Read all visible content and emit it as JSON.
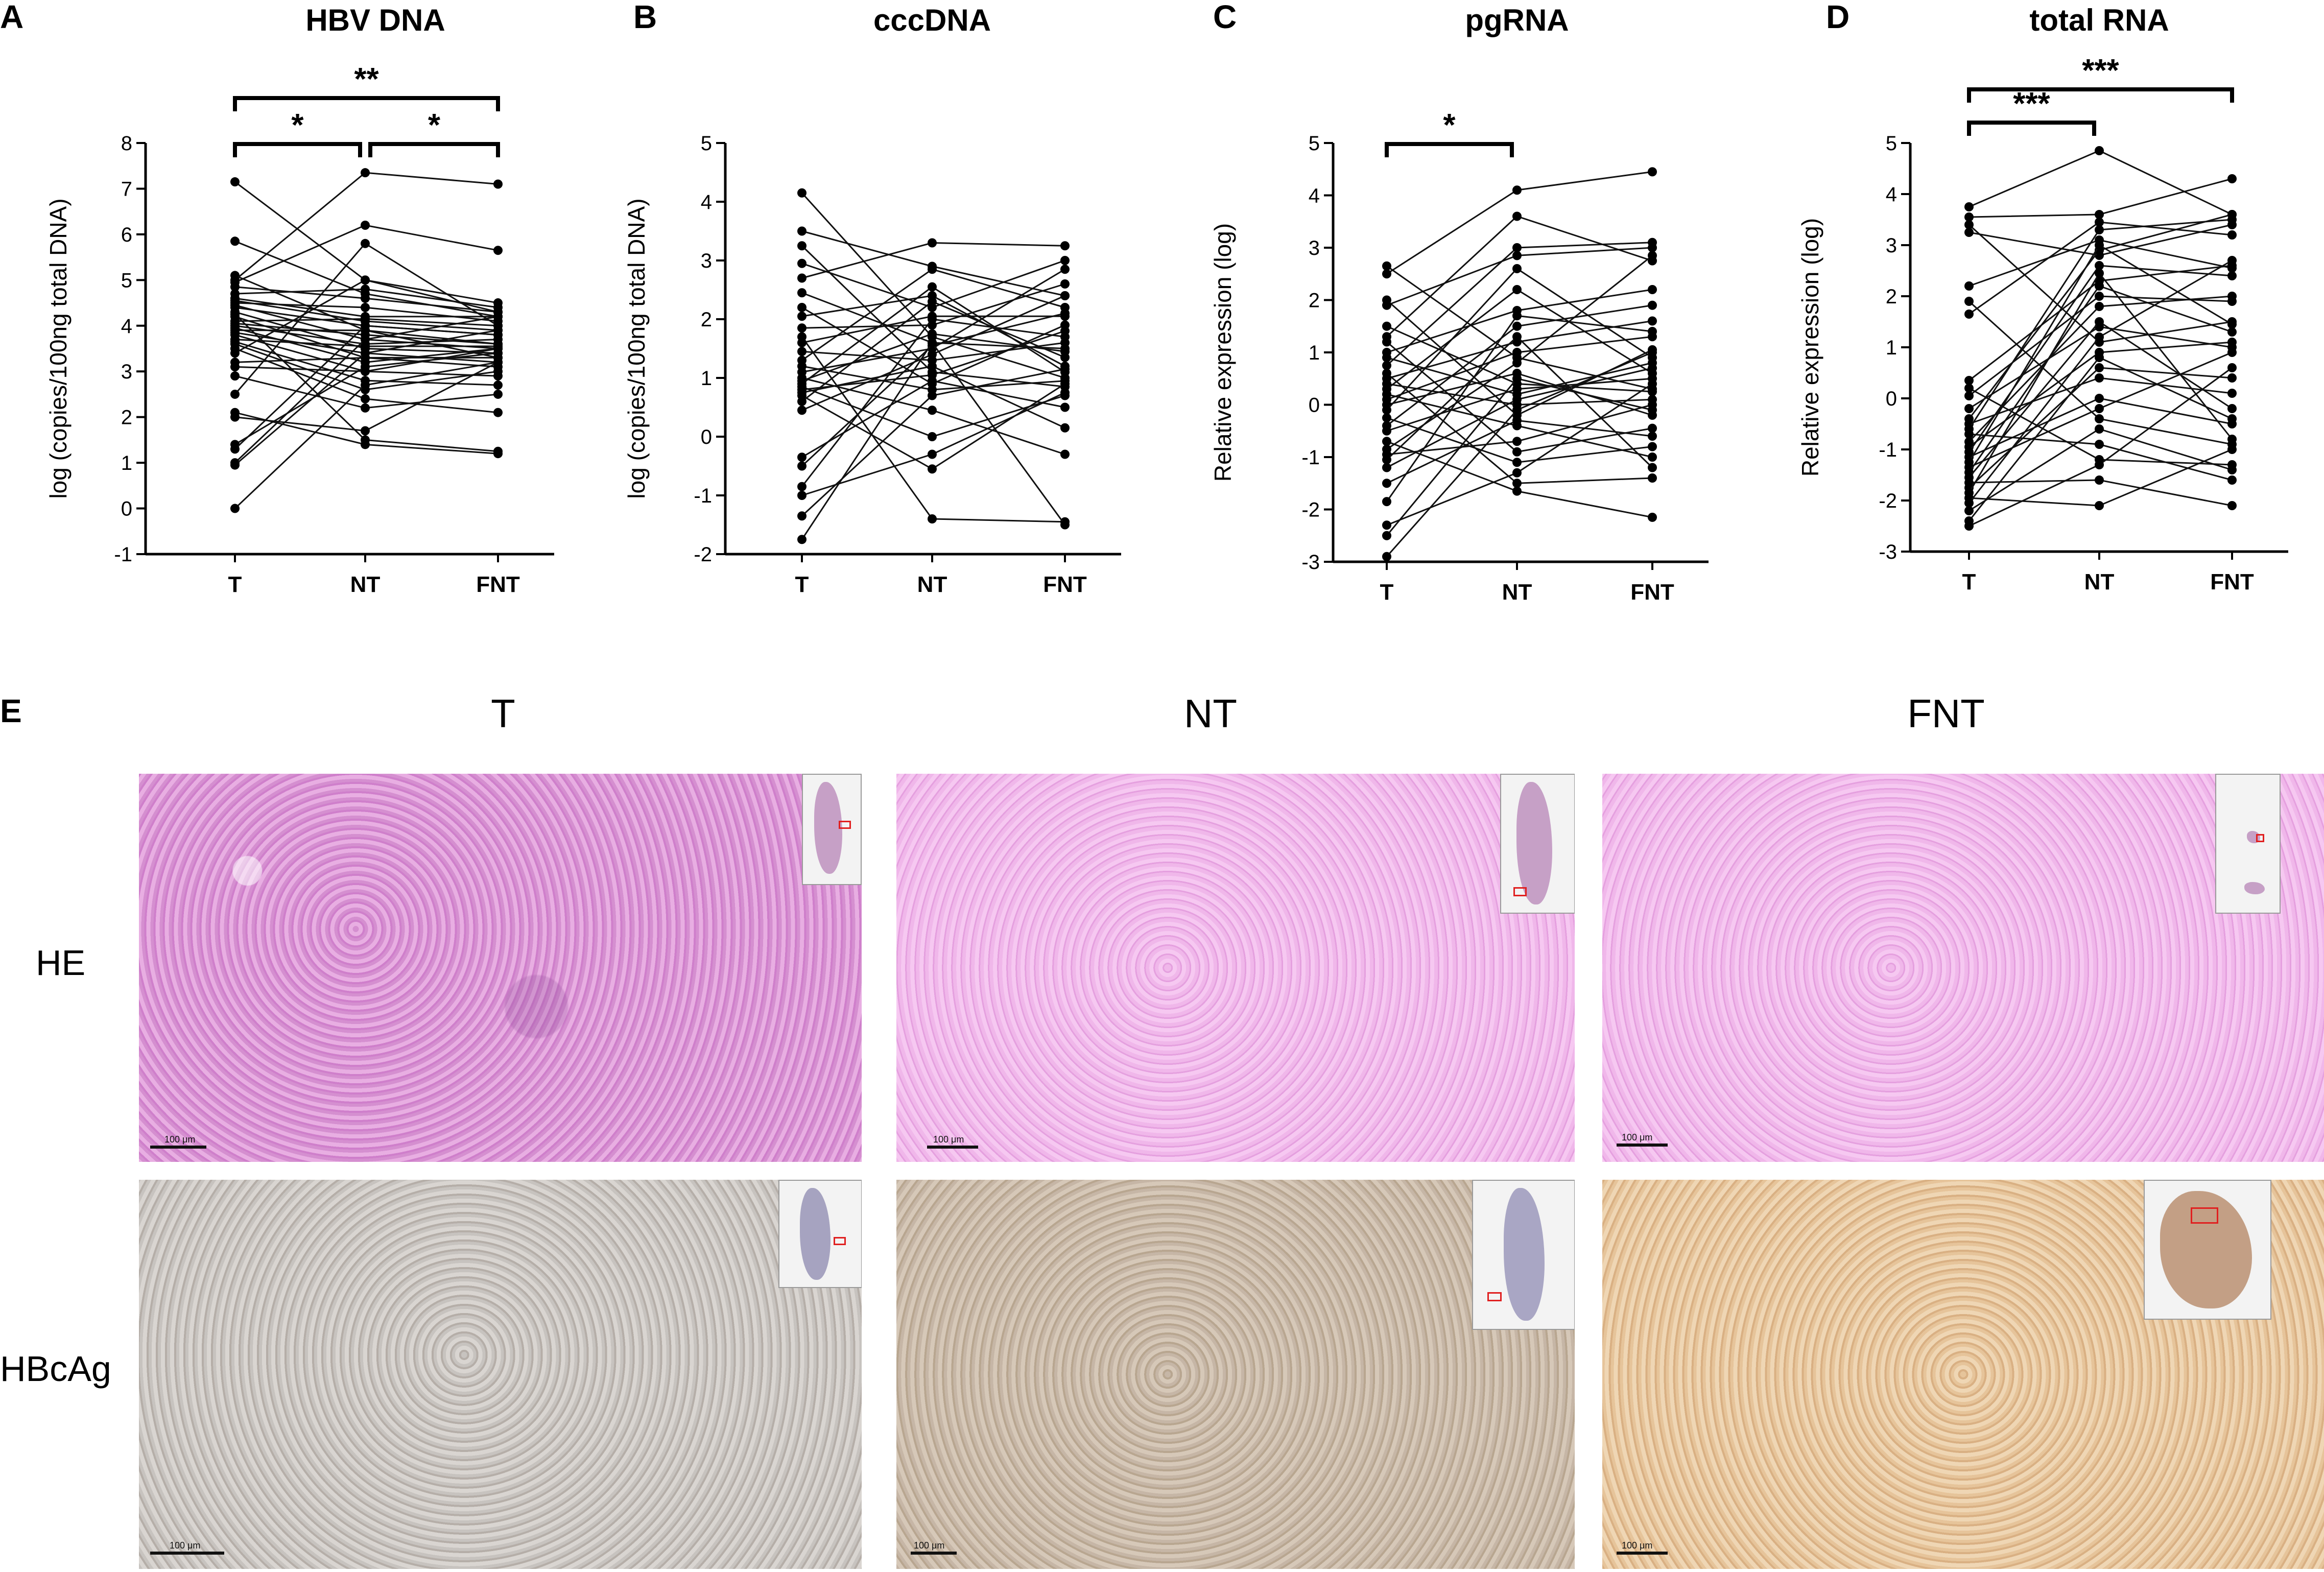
{
  "chart_data": [
    {
      "panel": "A",
      "type": "line",
      "title": "HBV DNA",
      "ylabel": "log (copies/100ng total DNA)",
      "categories": [
        "T",
        "NT",
        "FNT"
      ],
      "ylim": [
        -1,
        8
      ],
      "yticks": [
        -1,
        0,
        1,
        2,
        3,
        4,
        5,
        6,
        7,
        8
      ],
      "significance": [
        {
          "from": "T",
          "to": "NT",
          "label": "*"
        },
        {
          "from": "NT",
          "to": "FNT",
          "label": "*"
        },
        {
          "from": "T",
          "to": "FNT",
          "label": "**"
        }
      ],
      "series": [
        {
          "values": [
            7.15,
            5.0,
            4.5
          ]
        },
        {
          "values": [
            5.85,
            4.7,
            4.2
          ]
        },
        {
          "values": [
            5.1,
            3.9,
            3.6
          ]
        },
        {
          "values": [
            5.0,
            7.35,
            7.1
          ]
        },
        {
          "values": [
            4.95,
            6.2,
            5.65
          ]
        },
        {
          "values": [
            4.85,
            4.6,
            4.3
          ]
        },
        {
          "values": [
            4.7,
            4.8,
            4.4
          ]
        },
        {
          "values": [
            4.6,
            4.2,
            4.2
          ]
        },
        {
          "values": [
            4.55,
            4.1,
            3.9
          ]
        },
        {
          "values": [
            4.5,
            4.4,
            4.1
          ]
        },
        {
          "values": [
            4.45,
            3.7,
            3.5
          ]
        },
        {
          "values": [
            4.4,
            4.0,
            3.8
          ]
        },
        {
          "values": [
            4.3,
            3.5,
            3.4
          ]
        },
        {
          "values": [
            4.25,
            1.5,
            1.25
          ]
        },
        {
          "values": [
            4.2,
            3.3,
            3.1
          ]
        },
        {
          "values": [
            4.1,
            4.15,
            4.0
          ]
        },
        {
          "values": [
            4.05,
            3.8,
            3.6
          ]
        },
        {
          "values": [
            4.0,
            3.6,
            3.7
          ]
        },
        {
          "values": [
            3.95,
            3.2,
            3.5
          ]
        },
        {
          "values": [
            3.9,
            3.9,
            3.3
          ]
        },
        {
          "values": [
            3.85,
            3.4,
            3.2
          ]
        },
        {
          "values": [
            3.8,
            3.0,
            2.9
          ]
        },
        {
          "values": [
            3.7,
            3.55,
            3.55
          ]
        },
        {
          "values": [
            3.65,
            2.8,
            2.7
          ]
        },
        {
          "values": [
            3.6,
            2.6,
            3.0
          ]
        },
        {
          "values": [
            3.5,
            2.4,
            2.1
          ]
        },
        {
          "values": [
            3.4,
            5.0,
            4.3
          ]
        },
        {
          "values": [
            3.2,
            3.3,
            3.3
          ]
        },
        {
          "values": [
            3.1,
            3.0,
            3.5
          ]
        },
        {
          "values": [
            2.9,
            2.2,
            2.5
          ]
        },
        {
          "values": [
            2.5,
            5.8,
            4.0
          ]
        },
        {
          "values": [
            2.1,
            1.4,
            1.2
          ]
        },
        {
          "values": [
            2.0,
            1.7,
            3.2
          ]
        },
        {
          "values": [
            1.4,
            3.1,
            3.4
          ]
        },
        {
          "values": [
            1.3,
            4.0,
            3.8
          ]
        },
        {
          "values": [
            1.0,
            3.7,
            4.2
          ]
        },
        {
          "values": [
            0.95,
            3.4,
            3.9
          ]
        },
        {
          "values": [
            0.0,
            2.7,
            3.2
          ]
        }
      ]
    },
    {
      "panel": "B",
      "type": "line",
      "title": "cccDNA",
      "ylabel": "log (copies/100ng total DNA)",
      "categories": [
        "T",
        "NT",
        "FNT"
      ],
      "ylim": [
        -2,
        5
      ],
      "yticks": [
        -2,
        -1,
        0,
        1,
        2,
        3,
        4,
        5
      ],
      "significance": [],
      "series": [
        {
          "values": [
            4.15,
            1.7,
            1.0
          ]
        },
        {
          "values": [
            3.5,
            2.9,
            2.4
          ]
        },
        {
          "values": [
            3.25,
            1.1,
            0.85
          ]
        },
        {
          "values": [
            2.95,
            2.2,
            3.0
          ]
        },
        {
          "values": [
            2.7,
            3.3,
            3.25
          ]
        },
        {
          "values": [
            2.45,
            1.6,
            1.5
          ]
        },
        {
          "values": [
            2.2,
            0.9,
            1.9
          ]
        },
        {
          "values": [
            2.05,
            2.4,
            1.2
          ]
        },
        {
          "values": [
            1.85,
            1.9,
            2.6
          ]
        },
        {
          "values": [
            1.7,
            -1.4,
            -1.45
          ]
        },
        {
          "values": [
            1.6,
            2.05,
            2.05
          ]
        },
        {
          "values": [
            1.45,
            1.3,
            1.6
          ]
        },
        {
          "values": [
            1.3,
            2.85,
            2.2
          ]
        },
        {
          "values": [
            1.2,
            0.8,
            0.95
          ]
        },
        {
          "values": [
            1.1,
            1.5,
            2.85
          ]
        },
        {
          "values": [
            1.0,
            0.45,
            -0.3
          ]
        },
        {
          "values": [
            0.95,
            1.75,
            1.45
          ]
        },
        {
          "values": [
            0.9,
            2.55,
            1.1
          ]
        },
        {
          "values": [
            0.85,
            0.0,
            0.7
          ]
        },
        {
          "values": [
            0.8,
            1.05,
            1.8
          ]
        },
        {
          "values": [
            0.75,
            1.2,
            0.15
          ]
        },
        {
          "values": [
            0.7,
            -0.55,
            0.9
          ]
        },
        {
          "values": [
            0.6,
            2.3,
            1.35
          ]
        },
        {
          "values": [
            0.45,
            1.4,
            2.4
          ]
        },
        {
          "values": [
            -0.35,
            0.95,
            0.5
          ]
        },
        {
          "values": [
            -0.5,
            1.55,
            2.1
          ]
        },
        {
          "values": [
            -0.85,
            2.0,
            1.7
          ]
        },
        {
          "values": [
            -1.0,
            -0.3,
            0.75
          ]
        },
        {
          "values": [
            -1.35,
            0.7,
            1.15
          ]
        },
        {
          "values": [
            -1.75,
            1.6,
            -1.5
          ]
        }
      ]
    },
    {
      "panel": "C",
      "type": "line",
      "title": "pgRNA",
      "ylabel": "Relative expression (log)",
      "categories": [
        "T",
        "NT",
        "FNT"
      ],
      "ylim": [
        -3,
        5
      ],
      "yticks": [
        -3,
        -2,
        -1,
        0,
        1,
        2,
        3,
        4,
        5
      ],
      "significance": [
        {
          "from": "T",
          "to": "NT",
          "label": "*"
        }
      ],
      "series": [
        {
          "values": [
            2.65,
            0.9,
            0.3
          ]
        },
        {
          "values": [
            2.5,
            4.1,
            4.45
          ]
        },
        {
          "values": [
            2.0,
            -0.2,
            1.05
          ]
        },
        {
          "values": [
            1.9,
            2.85,
            3.0
          ]
        },
        {
          "values": [
            1.5,
            0.4,
            0.25
          ]
        },
        {
          "values": [
            1.3,
            3.6,
            2.75
          ]
        },
        {
          "values": [
            1.2,
            -0.9,
            -0.45
          ]
        },
        {
          "values": [
            1.0,
            1.8,
            2.2
          ]
        },
        {
          "values": [
            0.9,
            0.2,
            0.8
          ]
        },
        {
          "values": [
            0.75,
            3.0,
            3.1
          ]
        },
        {
          "values": [
            0.6,
            -1.5,
            -1.4
          ]
        },
        {
          "values": [
            0.5,
            1.2,
            1.6
          ]
        },
        {
          "values": [
            0.4,
            0.0,
            0.1
          ]
        },
        {
          "values": [
            0.3,
            2.2,
            0.6
          ]
        },
        {
          "values": [
            0.2,
            -0.4,
            -1.0
          ]
        },
        {
          "values": [
            0.1,
            1.0,
            1.3
          ]
        },
        {
          "values": [
            0.0,
            0.6,
            -0.2
          ]
        },
        {
          "values": [
            -0.1,
            2.6,
            0.9
          ]
        },
        {
          "values": [
            -0.25,
            -1.1,
            -0.8
          ]
        },
        {
          "values": [
            -0.4,
            1.5,
            1.9
          ]
        },
        {
          "values": [
            -0.5,
            0.3,
            0.5
          ]
        },
        {
          "values": [
            -0.7,
            -1.65,
            -2.15
          ]
        },
        {
          "values": [
            -0.85,
            0.8,
            2.85
          ]
        },
        {
          "values": [
            -0.95,
            -0.7,
            0.0
          ]
        },
        {
          "values": [
            -1.05,
            1.3,
            -1.2
          ]
        },
        {
          "values": [
            -1.2,
            0.1,
            0.7
          ]
        },
        {
          "values": [
            -1.5,
            -0.3,
            -0.6
          ]
        },
        {
          "values": [
            -1.85,
            1.7,
            1.4
          ]
        },
        {
          "values": [
            -2.3,
            -1.3,
            0.4
          ]
        },
        {
          "values": [
            -2.5,
            0.5,
            -0.1
          ]
        },
        {
          "values": [
            -2.9,
            -0.1,
            1.0
          ]
        }
      ]
    },
    {
      "panel": "D",
      "type": "line",
      "title": "total RNA",
      "ylabel": "Relative expression (log)",
      "categories": [
        "T",
        "NT",
        "FNT"
      ],
      "ylim": [
        -3,
        5
      ],
      "yticks": [
        -3,
        -2,
        -1,
        0,
        1,
        2,
        3,
        4,
        5
      ],
      "significance": [
        {
          "from": "T",
          "to": "NT",
          "label": "***"
        },
        {
          "from": "T",
          "to": "FNT",
          "label": "***"
        }
      ],
      "series": [
        {
          "values": [
            3.75,
            4.85,
            3.6
          ]
        },
        {
          "values": [
            3.55,
            3.6,
            4.3
          ]
        },
        {
          "values": [
            3.4,
            1.1,
            1.5
          ]
        },
        {
          "values": [
            3.25,
            2.8,
            3.4
          ]
        },
        {
          "values": [
            2.2,
            3.1,
            2.55
          ]
        },
        {
          "values": [
            1.9,
            -0.4,
            -0.9
          ]
        },
        {
          "values": [
            1.65,
            3.45,
            3.2
          ]
        },
        {
          "values": [
            0.35,
            2.3,
            2.6
          ]
        },
        {
          "values": [
            0.2,
            -1.2,
            -1.3
          ]
        },
        {
          "values": [
            0.05,
            2.0,
            1.9
          ]
        },
        {
          "values": [
            -0.2,
            1.4,
            1.0
          ]
        },
        {
          "values": [
            -0.4,
            2.9,
            3.6
          ]
        },
        {
          "values": [
            -0.5,
            0.4,
            0.1
          ]
        },
        {
          "values": [
            -0.6,
            3.3,
            3.5
          ]
        },
        {
          "values": [
            -0.7,
            -0.9,
            -1.6
          ]
        },
        {
          "values": [
            -0.85,
            1.8,
            2.0
          ]
        },
        {
          "values": [
            -0.95,
            0.9,
            1.1
          ]
        },
        {
          "values": [
            -1.05,
            2.6,
            2.4
          ]
        },
        {
          "values": [
            -1.15,
            0.0,
            -0.5
          ]
        },
        {
          "values": [
            -1.25,
            3.0,
            1.45
          ]
        },
        {
          "values": [
            -1.35,
            -0.2,
            0.9
          ]
        },
        {
          "values": [
            -1.45,
            2.2,
            1.3
          ]
        },
        {
          "values": [
            -1.55,
            1.5,
            -0.2
          ]
        },
        {
          "values": [
            -1.65,
            -1.6,
            -2.1
          ]
        },
        {
          "values": [
            -1.75,
            0.6,
            0.4
          ]
        },
        {
          "values": [
            -1.85,
            2.45,
            -0.8
          ]
        },
        {
          "values": [
            -1.95,
            -2.1,
            -1.0
          ]
        },
        {
          "values": [
            -2.05,
            1.2,
            2.7
          ]
        },
        {
          "values": [
            -2.2,
            -0.6,
            -1.4
          ]
        },
        {
          "values": [
            -2.4,
            0.8,
            -0.4
          ]
        },
        {
          "values": [
            -2.5,
            -1.3,
            0.6
          ]
        }
      ]
    }
  ],
  "histology": {
    "panel_letter": "E",
    "columns": [
      "T",
      "NT",
      "FNT"
    ],
    "rows": [
      "HE",
      "HBcAg"
    ],
    "scale_labels": [
      "100 μm",
      "100 μm",
      "100 μm",
      "100 μm",
      "100 μm",
      "100 μm"
    ]
  }
}
